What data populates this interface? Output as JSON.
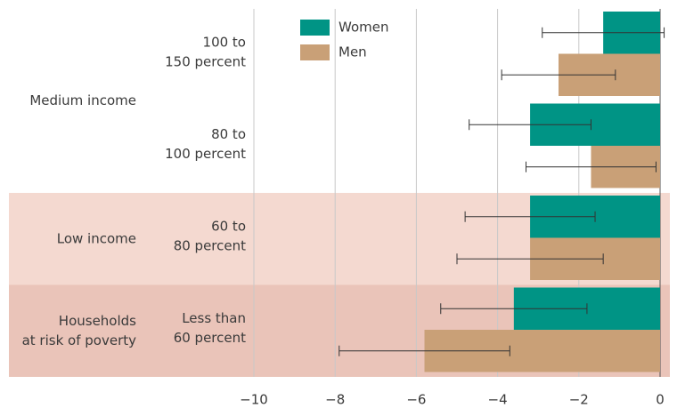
{
  "chart_data": {
    "type": "bar",
    "orientation": "horizontal",
    "groups": [
      {
        "label": [
          "Medium income"
        ],
        "color": "#ffffff",
        "categories": [
          [
            "100 to",
            "150 percent"
          ],
          [
            "80 to",
            "100 percent"
          ]
        ]
      },
      {
        "label": [
          "Low income"
        ],
        "color": "#f4d9d0",
        "categories": [
          [
            "60 to",
            "80 percent"
          ]
        ]
      },
      {
        "label": [
          "Households",
          "at risk of poverty"
        ],
        "color": "#eac4b9",
        "categories": [
          [
            "Less than",
            "60 percent"
          ]
        ]
      }
    ],
    "series": [
      {
        "name": "Women",
        "color": "#009485",
        "values": [
          -1.4,
          -3.2,
          -3.2,
          -3.6
        ],
        "errors": [
          1.5,
          1.5,
          1.6,
          1.8
        ]
      },
      {
        "name": "Men",
        "color": "#c9a077",
        "values": [
          -2.5,
          -1.7,
          -3.2,
          -5.8
        ],
        "errors": [
          1.4,
          1.6,
          1.8,
          2.1
        ]
      }
    ],
    "xlim": [
      -10,
      0
    ],
    "xticks": [
      {
        "value": -10,
        "label": "−10"
      },
      {
        "value": -8,
        "label": "−8"
      },
      {
        "value": -6,
        "label": "−6"
      },
      {
        "value": -4,
        "label": "−4"
      },
      {
        "value": -2,
        "label": "−2"
      },
      0
    ],
    "grid": true
  }
}
